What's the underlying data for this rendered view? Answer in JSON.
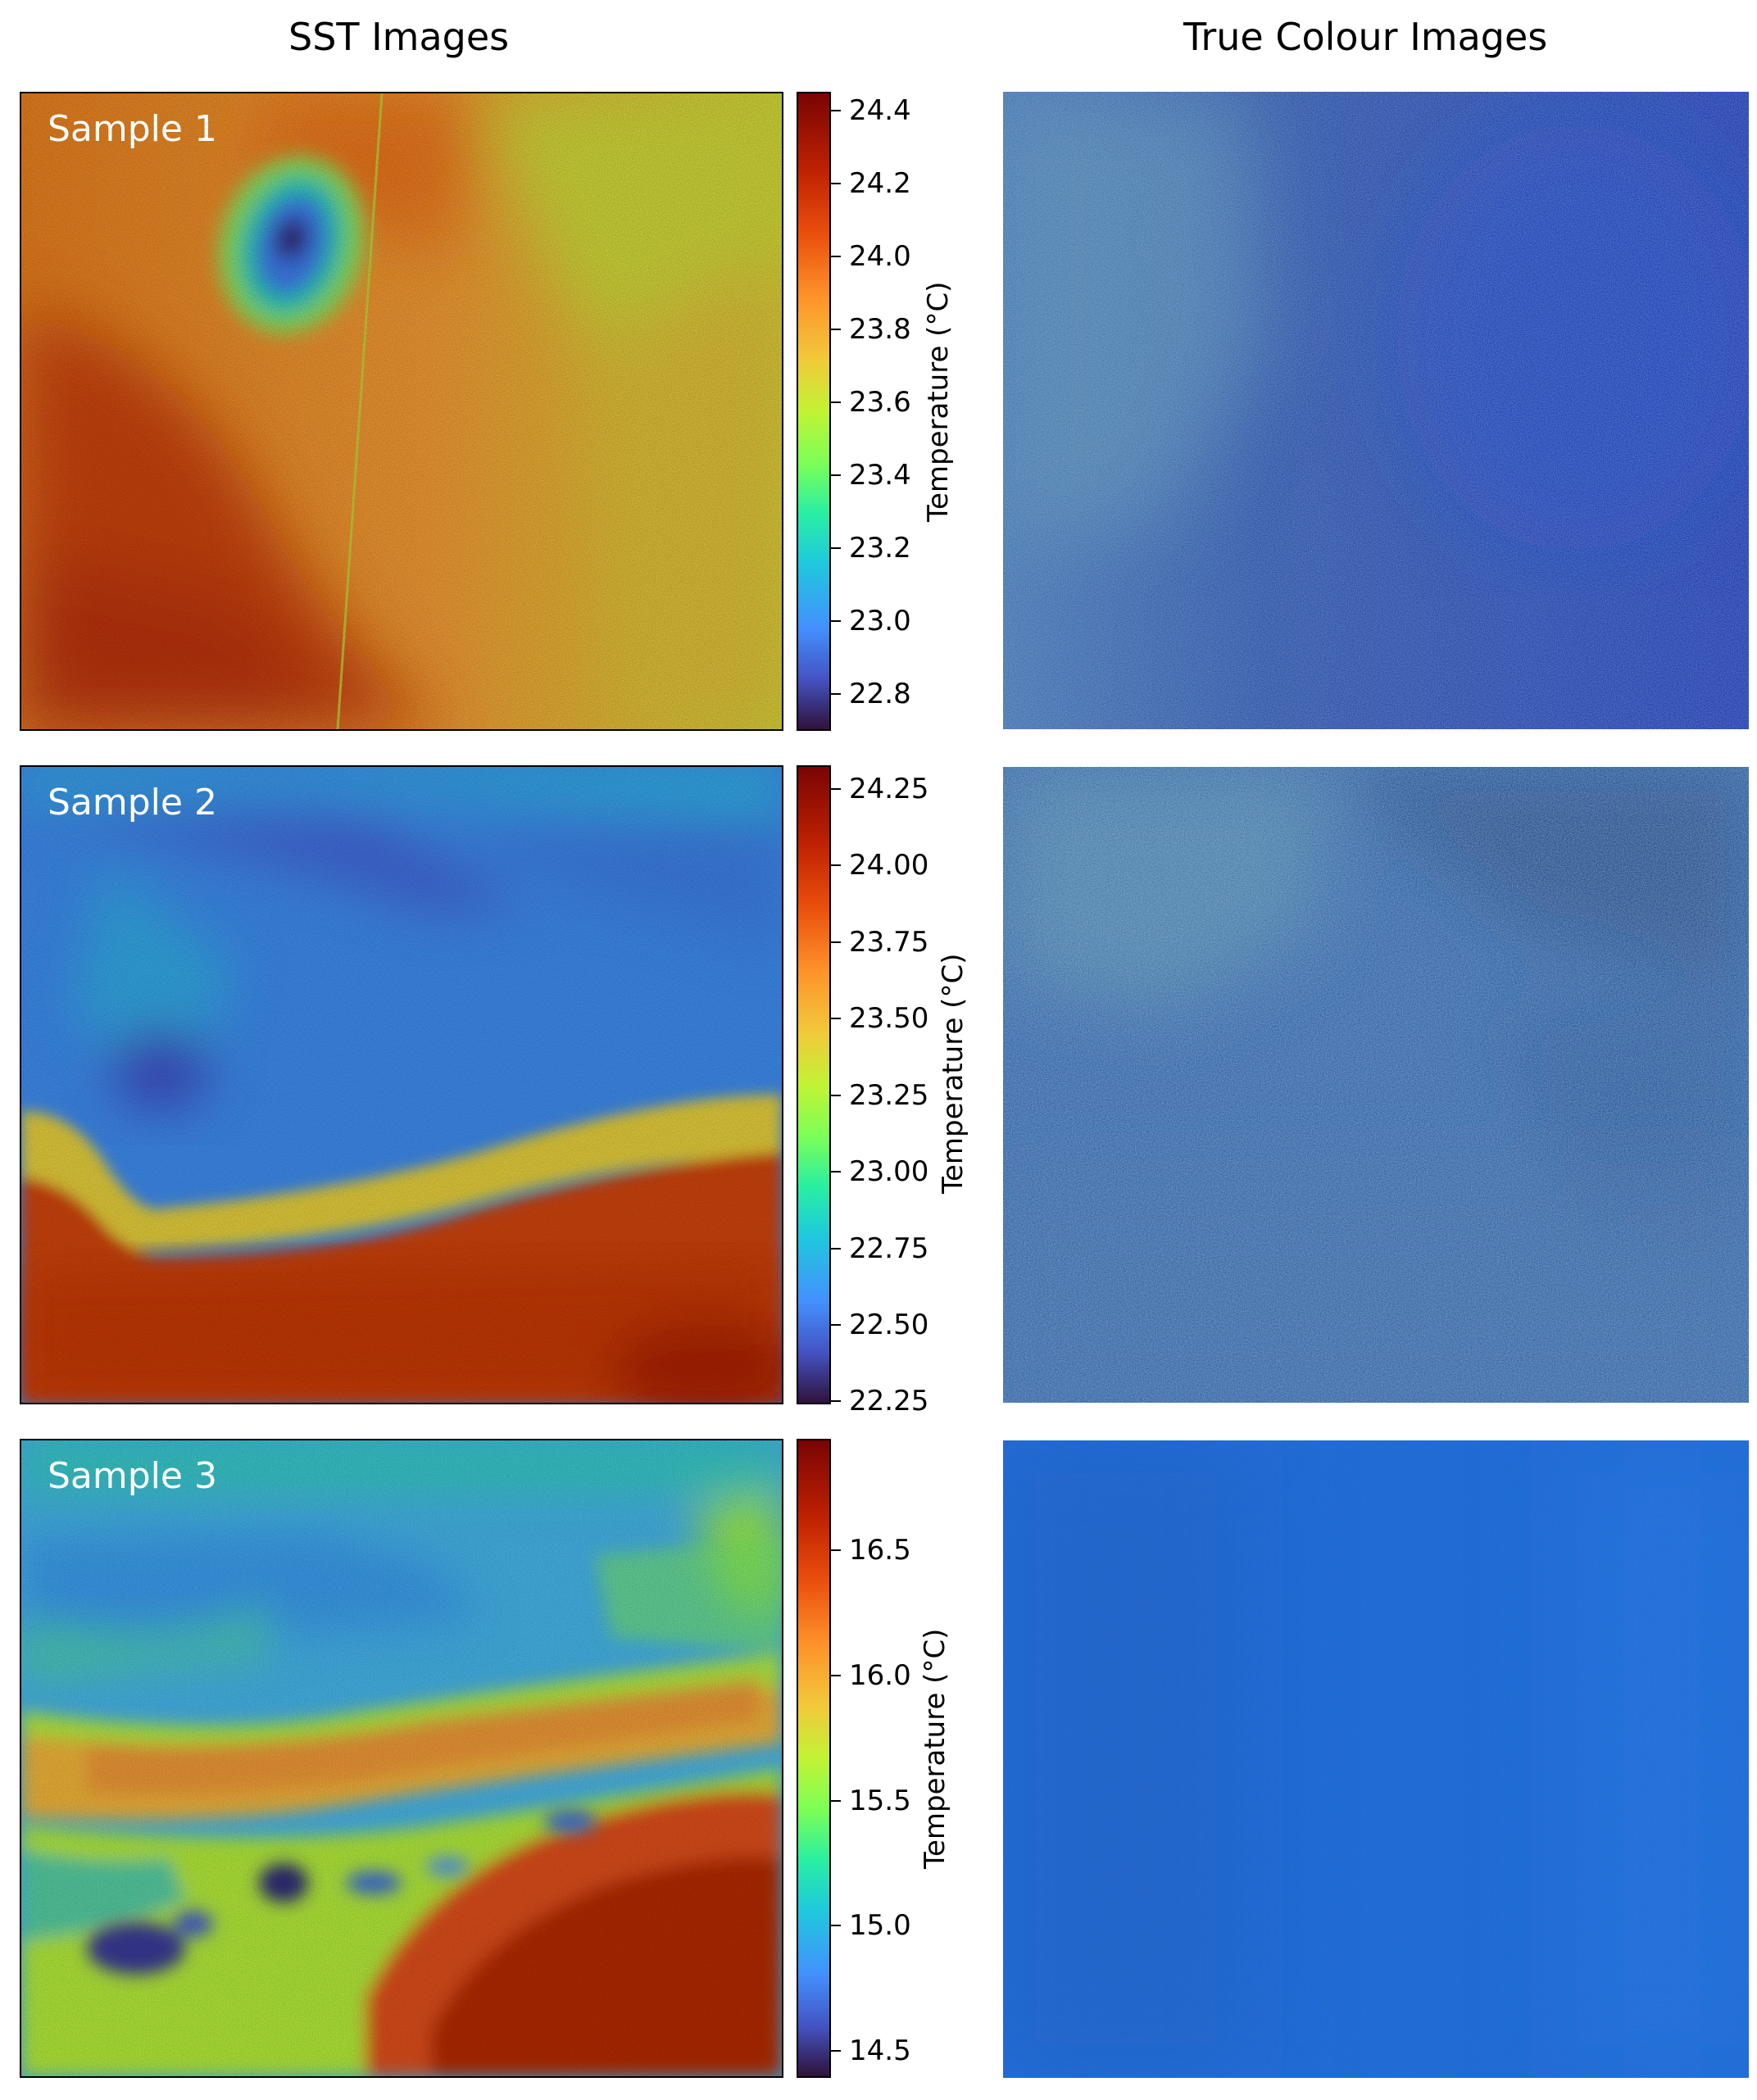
{
  "headers": {
    "sst": "SST Images",
    "true_colour": "True Colour Images"
  },
  "samples": [
    {
      "label": "Sample 1",
      "colorbar": {
        "title": "Temperature (°C)",
        "ticks": [
          "24.4",
          "24.2",
          "24.0",
          "23.8",
          "23.6",
          "23.4",
          "23.2",
          "23.0",
          "22.8"
        ],
        "min": 22.7,
        "max": 24.45
      }
    },
    {
      "label": "Sample 2",
      "colorbar": {
        "title": "Temperature (°C)",
        "ticks": [
          "24.25",
          "24.00",
          "23.75",
          "23.50",
          "23.25",
          "23.00",
          "22.75",
          "22.50",
          "22.25"
        ],
        "min": 22.25,
        "max": 24.32
      }
    },
    {
      "label": "Sample 3",
      "colorbar": {
        "title": "Temperature (°C)",
        "ticks": [
          "16.5",
          "16.0",
          "15.5",
          "15.0",
          "14.5"
        ],
        "min": 14.4,
        "max": 16.95
      }
    }
  ],
  "colors": {
    "colormap": "turbo",
    "true_colour_tone": "#1e50c8"
  }
}
